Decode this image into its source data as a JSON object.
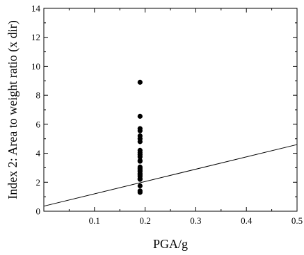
{
  "chart_data": {
    "type": "scatter",
    "xlabel": "PGA/g",
    "ylabel": "Index 2: Area to weight ratio (x dir)",
    "xlim": [
      0.0,
      0.5
    ],
    "ylim": [
      0,
      14
    ],
    "x_ticks": [
      0.1,
      0.2,
      0.3,
      0.4,
      0.5
    ],
    "x_tick_labels": [
      "0.1",
      "0.2",
      "0.3",
      "0.4",
      "0.5"
    ],
    "y_ticks": [
      0,
      2,
      4,
      6,
      8,
      10,
      12,
      14
    ],
    "y_tick_labels": [
      "0",
      "2",
      "4",
      "6",
      "8",
      "10",
      "12",
      "14"
    ],
    "grid": false,
    "legend": null,
    "points": {
      "x": [
        0.19,
        0.19,
        0.19,
        0.19,
        0.19,
        0.19,
        0.19,
        0.19,
        0.19,
        0.19,
        0.19,
        0.19,
        0.19,
        0.19,
        0.19,
        0.19,
        0.19,
        0.19,
        0.19,
        0.19,
        0.19,
        0.19,
        0.19,
        0.19,
        0.19
      ],
      "y": [
        8.9,
        6.55,
        5.7,
        5.55,
        5.2,
        5.0,
        4.8,
        4.2,
        4.05,
        3.9,
        3.75,
        3.5,
        3.45,
        3.05,
        2.95,
        2.85,
        2.75,
        2.6,
        2.5,
        2.4,
        2.25,
        2.2,
        1.75,
        1.4,
        1.3
      ],
      "color": "#000000"
    },
    "line": {
      "x": [
        0.0,
        0.5
      ],
      "y": [
        0.35,
        4.6
      ],
      "color": "#000000"
    }
  }
}
